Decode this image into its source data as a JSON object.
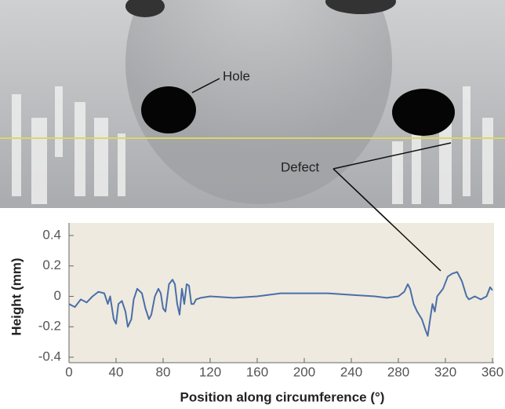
{
  "chart_data": {
    "type": "line",
    "annotations": {
      "hole": "Hole",
      "defect": "Defect"
    },
    "xlabel": "Position along circumference (°)",
    "ylabel": "Height (mm)",
    "x": [
      0,
      5,
      10,
      15,
      20,
      25,
      30,
      33,
      35,
      38,
      40,
      42,
      45,
      48,
      50,
      53,
      55,
      58,
      62,
      65,
      68,
      70,
      73,
      76,
      78,
      80,
      82,
      85,
      88,
      90,
      92,
      94,
      96,
      98,
      100,
      102,
      104,
      106,
      108,
      112,
      120,
      140,
      160,
      180,
      200,
      220,
      240,
      260,
      270,
      280,
      285,
      288,
      290,
      293,
      296,
      300,
      303,
      305,
      307,
      309,
      311,
      313,
      315,
      318,
      322,
      326,
      330,
      334,
      338,
      340,
      345,
      350,
      355,
      358,
      360
    ],
    "series": [
      {
        "color": "#4a6fa8",
        "values": [
          -0.05,
          -0.07,
          -0.02,
          -0.04,
          0.0,
          0.03,
          0.02,
          -0.05,
          0.0,
          -0.15,
          -0.18,
          -0.05,
          -0.03,
          -0.1,
          -0.2,
          -0.15,
          -0.02,
          0.05,
          0.02,
          -0.08,
          -0.15,
          -0.12,
          0.0,
          0.05,
          0.02,
          -0.08,
          -0.1,
          0.08,
          0.11,
          0.08,
          -0.05,
          -0.12,
          0.05,
          -0.05,
          0.08,
          0.07,
          -0.05,
          -0.05,
          -0.02,
          -0.01,
          0.0,
          -0.01,
          0.0,
          0.02,
          0.02,
          0.02,
          0.01,
          0.0,
          -0.01,
          0.0,
          0.03,
          0.08,
          0.05,
          -0.05,
          -0.1,
          -0.15,
          -0.22,
          -0.26,
          -0.15,
          -0.05,
          -0.1,
          0.0,
          0.02,
          0.05,
          0.13,
          0.15,
          0.16,
          0.1,
          0.0,
          -0.02,
          0.0,
          -0.02,
          0.0,
          0.06,
          0.04
        ]
      }
    ],
    "xlim": [
      0,
      360
    ],
    "xticks": [
      0,
      40,
      80,
      120,
      160,
      200,
      240,
      280,
      320,
      360
    ],
    "ylim": [
      -0.4,
      0.4
    ],
    "yticks": [
      0.4,
      0.2,
      0,
      -0.2,
      -0.4
    ]
  }
}
